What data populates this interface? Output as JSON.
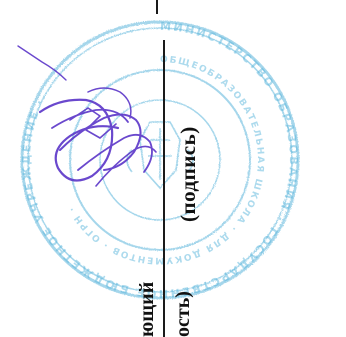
{
  "document": {
    "signature_caption": "(подпись)",
    "position_line_top": "ющий",
    "position_line_bottom": "ость)"
  },
  "stamp": {
    "ink_color": "#5bb6dc",
    "signature_ink_color": "#5a35c8",
    "line_color": "#1a1a1a"
  }
}
